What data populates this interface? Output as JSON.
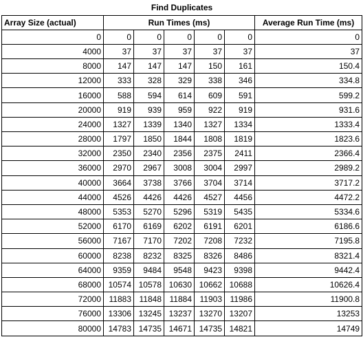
{
  "sheet": {
    "title": "Find Duplicates",
    "headers": {
      "size": "Array Size (actual)",
      "runs": "Run Times (ms)",
      "average": "Average Run Time (ms)"
    },
    "rows": [
      {
        "size": "0",
        "runs": [
          "0",
          "0",
          "0",
          "0",
          "0"
        ],
        "avg": "0"
      },
      {
        "size": "4000",
        "runs": [
          "37",
          "37",
          "37",
          "37",
          "37"
        ],
        "avg": "37"
      },
      {
        "size": "8000",
        "runs": [
          "147",
          "147",
          "147",
          "150",
          "161"
        ],
        "avg": "150.4"
      },
      {
        "size": "12000",
        "runs": [
          "333",
          "328",
          "329",
          "338",
          "346"
        ],
        "avg": "334.8"
      },
      {
        "size": "16000",
        "runs": [
          "588",
          "594",
          "614",
          "609",
          "591"
        ],
        "avg": "599.2"
      },
      {
        "size": "20000",
        "runs": [
          "919",
          "939",
          "959",
          "922",
          "919"
        ],
        "avg": "931.6"
      },
      {
        "size": "24000",
        "runs": [
          "1327",
          "1339",
          "1340",
          "1327",
          "1334"
        ],
        "avg": "1333.4"
      },
      {
        "size": "28000",
        "runs": [
          "1797",
          "1850",
          "1844",
          "1808",
          "1819"
        ],
        "avg": "1823.6"
      },
      {
        "size": "32000",
        "runs": [
          "2350",
          "2340",
          "2356",
          "2375",
          "2411"
        ],
        "avg": "2366.4"
      },
      {
        "size": "36000",
        "runs": [
          "2970",
          "2967",
          "3008",
          "3004",
          "2997"
        ],
        "avg": "2989.2"
      },
      {
        "size": "40000",
        "runs": [
          "3664",
          "3738",
          "3766",
          "3704",
          "3714"
        ],
        "avg": "3717.2"
      },
      {
        "size": "44000",
        "runs": [
          "4526",
          "4426",
          "4426",
          "4527",
          "4456"
        ],
        "avg": "4472.2"
      },
      {
        "size": "48000",
        "runs": [
          "5353",
          "5270",
          "5296",
          "5319",
          "5435"
        ],
        "avg": "5334.6"
      },
      {
        "size": "52000",
        "runs": [
          "6170",
          "6169",
          "6202",
          "6191",
          "6201"
        ],
        "avg": "6186.6"
      },
      {
        "size": "56000",
        "runs": [
          "7167",
          "7170",
          "7202",
          "7208",
          "7232"
        ],
        "avg": "7195.8"
      },
      {
        "size": "60000",
        "runs": [
          "8238",
          "8232",
          "8325",
          "8326",
          "8486"
        ],
        "avg": "8321.4"
      },
      {
        "size": "64000",
        "runs": [
          "9359",
          "9484",
          "9548",
          "9423",
          "9398"
        ],
        "avg": "9442.4"
      },
      {
        "size": "68000",
        "runs": [
          "10574",
          "10578",
          "10630",
          "10662",
          "10688"
        ],
        "avg": "10626.4"
      },
      {
        "size": "72000",
        "runs": [
          "11883",
          "11848",
          "11884",
          "11903",
          "11986"
        ],
        "avg": "11900.8"
      },
      {
        "size": "76000",
        "runs": [
          "13306",
          "13245",
          "13237",
          "13270",
          "13207"
        ],
        "avg": "13253"
      },
      {
        "size": "80000",
        "runs": [
          "14783",
          "14735",
          "14671",
          "14735",
          "14821"
        ],
        "avg": "14749"
      }
    ]
  }
}
